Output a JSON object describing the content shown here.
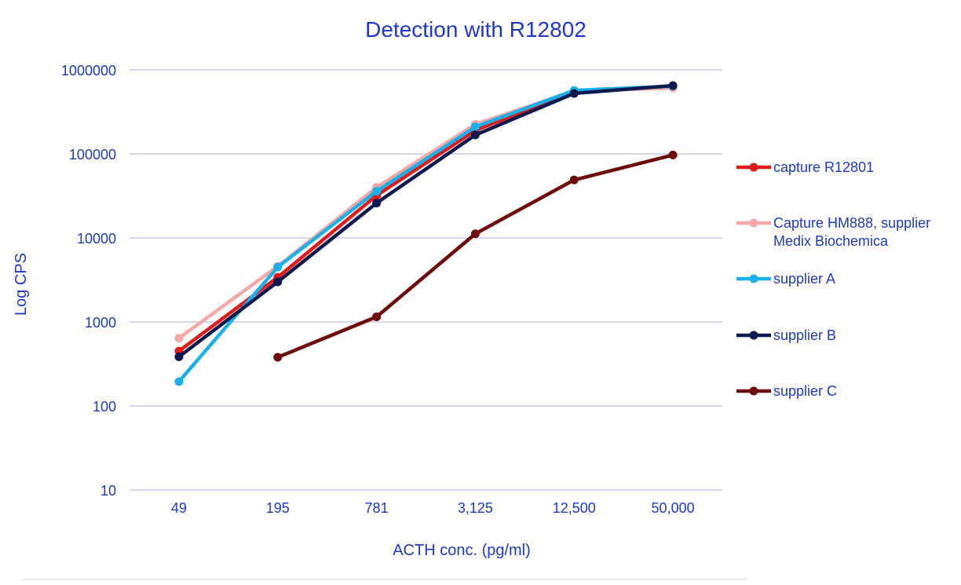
{
  "chart_data": {
    "type": "line",
    "title": "Detection with R12802",
    "xlabel": "ACTH conc. (pg/ml)",
    "ylabel": "Log CPS",
    "y_scale": "log",
    "ylim": [
      10,
      1000000
    ],
    "yticks": [
      "10",
      "100",
      "1000",
      "10000",
      "100000",
      "1000000"
    ],
    "categories": [
      "49",
      "195",
      "781",
      "3,125",
      "12,500",
      "50,000"
    ],
    "grid": "horizontal",
    "legend_position": "right",
    "series": [
      {
        "name": "capture R12801",
        "color": "#e01b1b",
        "values": [
          450,
          3400,
          32000,
          190000,
          560000,
          640000
        ]
      },
      {
        "name": "Capture HM888, supplier Medix Biochemica",
        "legend_lines": [
          "Capture HM888, supplier",
          "Medix Biochemica"
        ],
        "color": "#f5a8a8",
        "values": [
          640,
          4600,
          40000,
          225000,
          560000,
          610000
        ]
      },
      {
        "name": "supplier A",
        "color": "#1ab0ea",
        "values": [
          195,
          4500,
          36000,
          210000,
          570000,
          640000
        ]
      },
      {
        "name": "supplier B",
        "color": "#0d1a4f",
        "values": [
          385,
          3000,
          26000,
          168000,
          525000,
          650000
        ]
      },
      {
        "name": "supplier C",
        "color": "#6e0c0c",
        "values": [
          null,
          380,
          1150,
          11200,
          49000,
          97000
        ]
      }
    ]
  }
}
